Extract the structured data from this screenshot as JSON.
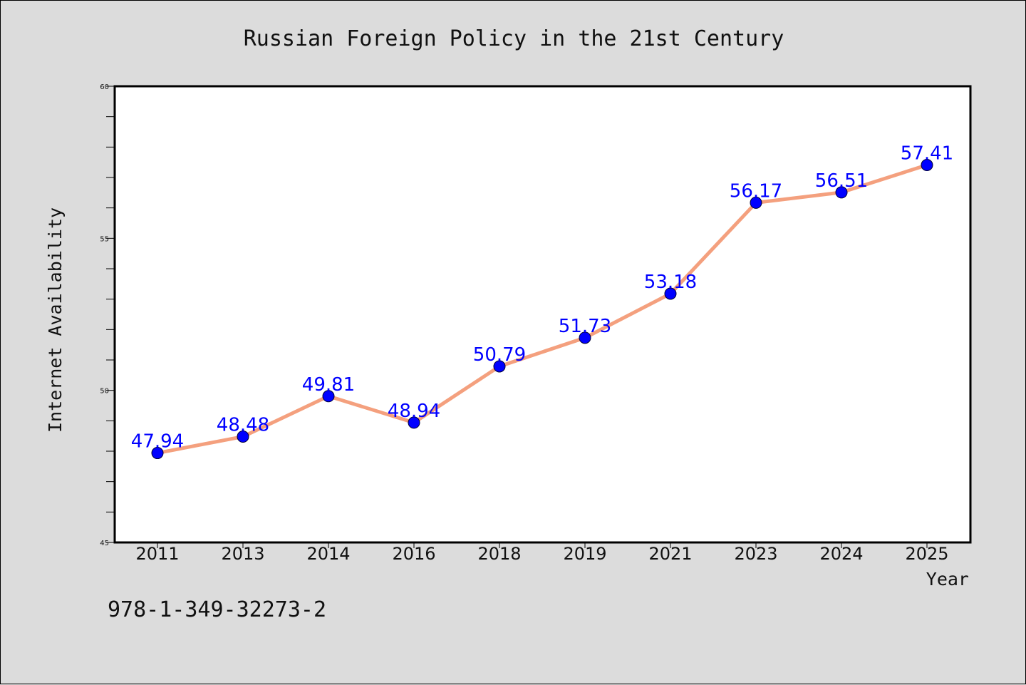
{
  "chart_data": {
    "type": "line",
    "title": "Russian Foreign Policy in the 21st Century",
    "xlabel": "Year",
    "ylabel": "Internet Availability",
    "categories": [
      "2011",
      "2013",
      "2014",
      "2016",
      "2018",
      "2019",
      "2021",
      "2023",
      "2024",
      "2025"
    ],
    "series": [
      {
        "values": [
          47.94,
          48.48,
          49.81,
          48.94,
          50.79,
          51.73,
          53.18,
          56.17,
          56.51,
          57.41
        ],
        "labels": [
          "47.94",
          "48.48",
          "49.81",
          "48.94",
          "50.79",
          "51.73",
          "53.18",
          "56.17",
          "56.51",
          "57.41"
        ]
      }
    ],
    "ylim": [
      45,
      60
    ],
    "yticks": [
      "45",
      "50",
      "55",
      "60"
    ],
    "grid": false,
    "legend": "none",
    "colors": {
      "line": "#f4a07e",
      "marker": "#0000ff",
      "label": "#0000ff",
      "plot_bg": "#ffffff",
      "page_bg": "#dcdcdc"
    }
  },
  "footer": {
    "isbn": "978-1-349-32273-2"
  }
}
